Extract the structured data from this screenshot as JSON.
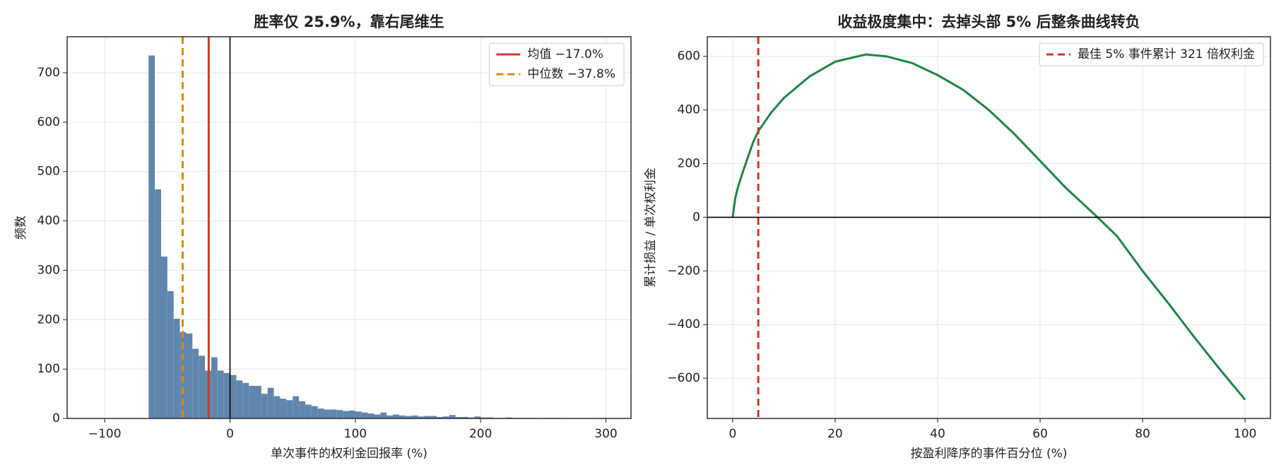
{
  "chart_data": [
    {
      "type": "histogram",
      "title": "胜率仅 25.9%，靠右尾维生",
      "xlabel": "单次事件的权利金回报率 (%)",
      "ylabel": "频数",
      "bins": [
        -65,
        -60,
        -55,
        -50,
        -45,
        -40,
        -35,
        -30,
        -25,
        -20,
        -15,
        -10,
        -5,
        0,
        5,
        10,
        15,
        20,
        25,
        30,
        35,
        40,
        45,
        50,
        55,
        60,
        65,
        70,
        75,
        80,
        85,
        90,
        95,
        100,
        105,
        110,
        115,
        120,
        125,
        130,
        135,
        140,
        145,
        150,
        155,
        160,
        165,
        170,
        175,
        180,
        185,
        190,
        195,
        200,
        205,
        210,
        215,
        220,
        225,
        230,
        235,
        240,
        245,
        250,
        255,
        260,
        265,
        270,
        275,
        280,
        285,
        290,
        295,
        300
      ],
      "counts": [
        735,
        464,
        328,
        258,
        202,
        175,
        172,
        141,
        127,
        97,
        124,
        97,
        92,
        88,
        77,
        72,
        66,
        66,
        50,
        62,
        45,
        40,
        37,
        45,
        35,
        28,
        25,
        20,
        18,
        18,
        17,
        15,
        16,
        14,
        12,
        10,
        8,
        12,
        6,
        8,
        6,
        5,
        6,
        4,
        5,
        5,
        3,
        4,
        7,
        3,
        3,
        2,
        4,
        2,
        2,
        1,
        1,
        2,
        1,
        1,
        1,
        1,
        0,
        1,
        1,
        1,
        0,
        1,
        0,
        1,
        0,
        0,
        1
      ],
      "color": "#6186ad",
      "xlim": [
        -130,
        320
      ],
      "ylim": [
        0,
        773
      ],
      "xticks": [
        {
          "value": -100,
          "label": "−100"
        },
        0,
        100,
        200,
        300
      ],
      "yticks": [
        0,
        100,
        200,
        300,
        400,
        500,
        600,
        700
      ],
      "grid": true,
      "legend": "upper right",
      "vlines": [
        {
          "value": 0,
          "color": "#000000",
          "style": "solid"
        },
        {
          "name": "均值 −17.0%",
          "value": -17.0,
          "color": "#cf3a2c",
          "style": "solid"
        },
        {
          "name": "中位数 −37.8%",
          "value": -37.8,
          "color": "#d98a0c",
          "style": "dashed"
        }
      ],
      "hlines": []
    },
    {
      "type": "line",
      "title": "收益极度集中：去掉头部 5% 后整条曲线转负",
      "xlabel": "按盈利降序的事件百分位 (%)",
      "ylabel": "累计损益 / 单次权利金",
      "x": [
        0,
        0.5,
        1,
        2,
        3,
        4,
        5,
        7.5,
        10,
        15,
        20,
        26,
        30,
        35,
        40,
        45,
        50,
        55,
        60,
        65,
        71.2,
        75,
        80,
        85,
        90,
        95,
        100
      ],
      "series": [
        {
          "color": "#1e8449",
          "values": [
            0,
            70,
            110,
            170,
            225,
            280,
            321,
            390,
            445,
            525,
            580,
            607,
            600,
            575,
            530,
            475,
            400,
            310,
            210,
            110,
            0,
            -70,
            -200,
            -320,
            -445,
            -565,
            -680
          ]
        }
      ],
      "xlim": [
        -4.95,
        104.95
      ],
      "ylim": [
        -750,
        673
      ],
      "xticks": [
        0,
        20,
        40,
        60,
        80,
        100
      ],
      "yticks": [
        {
          "value": -600,
          "label": "−600"
        },
        {
          "value": -400,
          "label": "−400"
        },
        {
          "value": -200,
          "label": "−200"
        },
        0,
        200,
        400,
        600
      ],
      "grid": true,
      "legend": "upper right",
      "vlines": [
        {
          "name": "最佳 5% 事件累计 321 倍权利金",
          "value": 5,
          "color": "#d0342c",
          "style": "dashed"
        }
      ],
      "hlines": [
        {
          "value": 0,
          "color": "#000000",
          "style": "solid"
        }
      ]
    }
  ]
}
